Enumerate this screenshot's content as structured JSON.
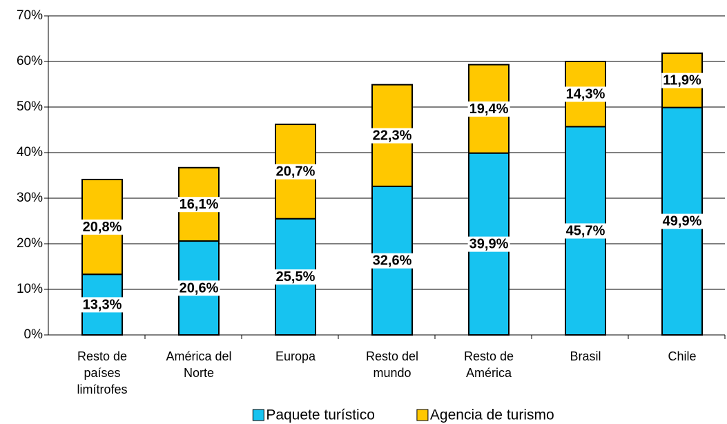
{
  "chart_data": {
    "type": "stacked-bar",
    "categories": [
      "Resto de\npaíses\nlimítrofes",
      "América del\nNorte",
      "Europa",
      "Resto del\nmundo",
      "Resto de\nAmérica",
      "Brasil",
      "Chile"
    ],
    "series": [
      {
        "name": "Paquete turístico",
        "color": "#17c3f0",
        "values": [
          13.3,
          20.6,
          25.5,
          32.6,
          39.9,
          45.7,
          49.9
        ],
        "value_labels": [
          "13,3%",
          "20,6%",
          "25,5%",
          "32,6%",
          "39,9%",
          "45,7%",
          "49,9%"
        ]
      },
      {
        "name": "Agencia de turismo",
        "color": "#ffc800",
        "values": [
          20.8,
          16.1,
          20.7,
          22.3,
          19.4,
          14.3,
          11.9
        ],
        "value_labels": [
          "20,8%",
          "16,1%",
          "20,7%",
          "22,3%",
          "19,4%",
          "14,3%",
          "11,9%"
        ]
      }
    ],
    "ylim": [
      0,
      70
    ],
    "yticks": [
      {
        "value": 0,
        "label": "0%"
      },
      {
        "value": 10,
        "label": "10%"
      },
      {
        "value": 20,
        "label": "20%"
      },
      {
        "value": 30,
        "label": "30%"
      },
      {
        "value": 40,
        "label": "40%"
      },
      {
        "value": 50,
        "label": "50%"
      },
      {
        "value": 60,
        "label": "60%"
      },
      {
        "value": 70,
        "label": "70%"
      }
    ],
    "grid": true,
    "legend": "bottom"
  }
}
